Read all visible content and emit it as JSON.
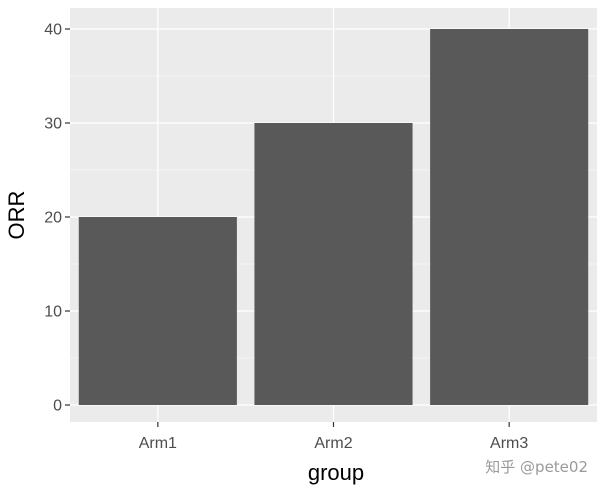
{
  "chart_data": {
    "type": "bar",
    "categories": [
      "Arm1",
      "Arm2",
      "Arm3"
    ],
    "values": [
      20,
      30,
      40
    ],
    "title": "",
    "xlabel": "group",
    "ylabel": "ORR",
    "ylim": [
      0,
      42
    ],
    "yticks": [
      0,
      10,
      20,
      30,
      40
    ],
    "grid": true,
    "legend": "none"
  },
  "colors": {
    "panel_background": "#ebebeb",
    "gridline": "#ffffff",
    "bar_fill": "#595959",
    "tick_mark": "#333333"
  },
  "watermark": {
    "text": "知乎 @pete02"
  }
}
